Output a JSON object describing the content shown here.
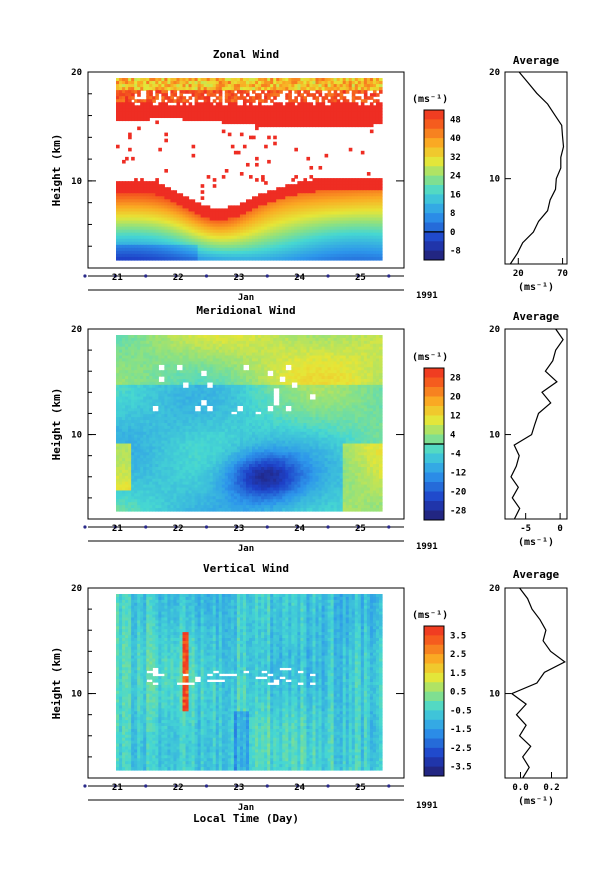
{
  "figure": {
    "xlabel": "Local Time (Day)",
    "month_label": "Jan",
    "year_label": "1991",
    "ylabel": "Height (km)",
    "average_title": "Average",
    "colorbar_unit": "(ms⁻¹)",
    "profile_xlabel": "(ms⁻¹)"
  },
  "chart_data": [
    {
      "type": "heatmap",
      "title": "Zonal Wind",
      "x_tick_labels": [
        "21",
        "22",
        "23",
        "24",
        "25"
      ],
      "x": [
        21,
        22,
        23,
        24,
        25
      ],
      "y_tick_labels": [
        "20",
        "10"
      ],
      "ylim": [
        2,
        20
      ],
      "colorbar": {
        "ticks": [
          "48",
          "40",
          "32",
          "24",
          "16",
          "8",
          "0",
          "-8"
        ],
        "range": [
          -12,
          52
        ]
      },
      "average": {
        "title": "Average",
        "x_tick_labels": [
          "20",
          "70"
        ],
        "xlim": [
          5,
          75
        ],
        "height": [
          2,
          3,
          4,
          5,
          6,
          7,
          8,
          9,
          10,
          11,
          12,
          13,
          14,
          15,
          16,
          17,
          18,
          19,
          20
        ],
        "value": [
          12,
          18,
          26,
          36,
          44,
          52,
          57,
          61,
          64,
          67,
          69,
          70,
          71,
          68,
          62,
          52,
          42,
          30,
          22
        ]
      }
    },
    {
      "type": "heatmap",
      "title": "Meridional Wind",
      "x_tick_labels": [
        "21",
        "22",
        "23",
        "24",
        "25"
      ],
      "x": [
        21,
        22,
        23,
        24,
        25
      ],
      "y_tick_labels": [
        "20",
        "10"
      ],
      "ylim": [
        2,
        20
      ],
      "colorbar": {
        "ticks": [
          "28",
          "20",
          "12",
          "4",
          "-4",
          "-12",
          "-20",
          "-28"
        ],
        "range": [
          -32,
          32
        ]
      },
      "average": {
        "title": "Average",
        "x_tick_labels": [
          "-5",
          "0"
        ],
        "xlim": [
          -8,
          1
        ],
        "height": [
          2,
          3,
          4,
          5,
          6,
          7,
          8,
          9,
          10,
          11,
          12,
          13,
          14,
          15,
          16,
          17,
          18,
          19,
          20
        ],
        "value": [
          -6.5,
          -6.0,
          -6.8,
          -6.2,
          -7.0,
          -6.5,
          -5.8,
          -6.8,
          -4.0,
          -3.8,
          -3.0,
          -1.5,
          -2.5,
          -0.6,
          -2.0,
          -1.2,
          -0.5,
          0.3,
          -0.5
        ]
      }
    },
    {
      "type": "heatmap",
      "title": "Vertical Wind",
      "x_tick_labels": [
        "21",
        "22",
        "23",
        "24",
        "25"
      ],
      "x": [
        21,
        22,
        23,
        24,
        25
      ],
      "y_tick_labels": [
        "20",
        "10"
      ],
      "ylim": [
        2,
        20
      ],
      "colorbar": {
        "ticks": [
          "3.5",
          "2.5",
          "1.5",
          "0.5",
          "-0.5",
          "-1.5",
          "-2.5",
          "-3.5"
        ],
        "range": [
          -4,
          4
        ]
      },
      "average": {
        "title": "Average",
        "x_tick_labels": [
          "0.0",
          "0.2"
        ],
        "xlim": [
          -0.1,
          0.3
        ],
        "height": [
          2,
          3,
          4,
          5,
          6,
          7,
          8,
          9,
          10,
          11,
          12,
          13,
          14,
          15,
          16,
          17,
          18,
          19,
          20
        ],
        "value": [
          0.02,
          0.05,
          0.02,
          0.06,
          0.0,
          0.03,
          -0.02,
          0.03,
          -0.05,
          0.1,
          0.16,
          0.28,
          0.2,
          0.14,
          0.17,
          0.12,
          0.08,
          0.04,
          0.0
        ]
      }
    }
  ]
}
